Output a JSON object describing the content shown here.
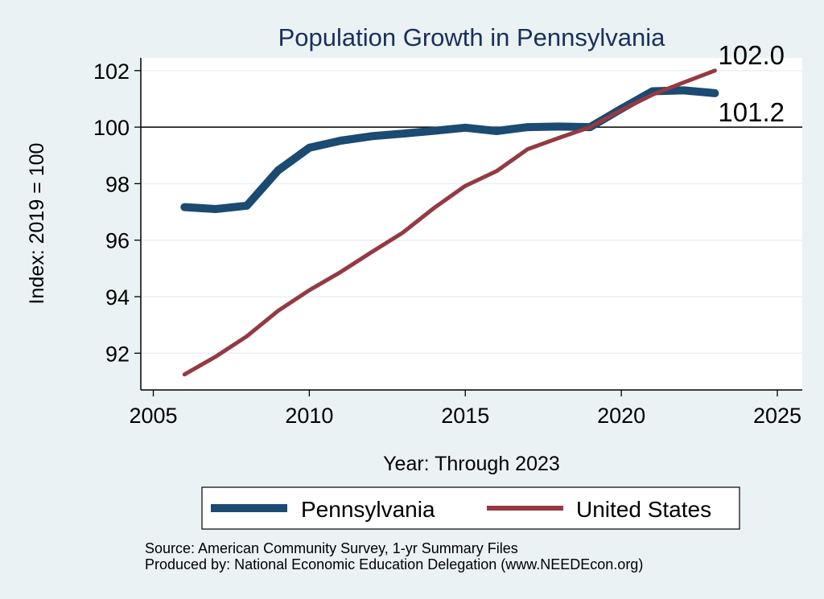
{
  "chart_data": {
    "type": "line",
    "title": "Population Growth in Pennsylvania",
    "xlabel": "Year: Through 2023",
    "ylabel": "Index: 2019 = 100",
    "xlim": [
      2004.6,
      2025.8
    ],
    "ylim": [
      90.7,
      102.45
    ],
    "x_ticks": [
      2005,
      2010,
      2015,
      2020,
      2025
    ],
    "y_ticks": [
      92,
      94,
      96,
      98,
      100,
      102
    ],
    "x_tick_labels": [
      "2005",
      "2010",
      "2015",
      "2020",
      "2025"
    ],
    "y_tick_labels": [
      "92",
      "94",
      "96",
      "98",
      "100",
      "102"
    ],
    "grid": true,
    "reference_line": {
      "y": 100,
      "color": "#000000"
    },
    "x": [
      2006,
      2007,
      2008,
      2009,
      2010,
      2011,
      2012,
      2013,
      2014,
      2015,
      2016,
      2017,
      2018,
      2019,
      2020,
      2021,
      2022,
      2023
    ],
    "series": [
      {
        "name": "Pennsylvania",
        "color": "#1b4a72",
        "values": [
          97.17,
          97.1,
          97.22,
          98.47,
          99.27,
          99.52,
          99.68,
          99.77,
          99.87,
          99.98,
          99.86,
          100.0,
          100.02,
          100.0,
          100.65,
          101.27,
          101.3,
          101.2
        ],
        "end_label": "101.2"
      },
      {
        "name": "United States",
        "color": "#943a42",
        "values": [
          91.25,
          91.88,
          92.6,
          93.5,
          94.23,
          94.87,
          95.58,
          96.27,
          97.14,
          97.92,
          98.44,
          99.22,
          99.62,
          100.0,
          100.6,
          101.15,
          101.58,
          102.0
        ],
        "end_label": "102.0"
      }
    ],
    "legend": {
      "position": "bottom",
      "entries": [
        "Pennsylvania",
        "United States"
      ]
    },
    "notes": [
      "Source: American Community Survey, 1-yr Summary Files",
      "Produced by: National Economic Education Delegation (www.NEEDEcon.org)"
    ]
  }
}
